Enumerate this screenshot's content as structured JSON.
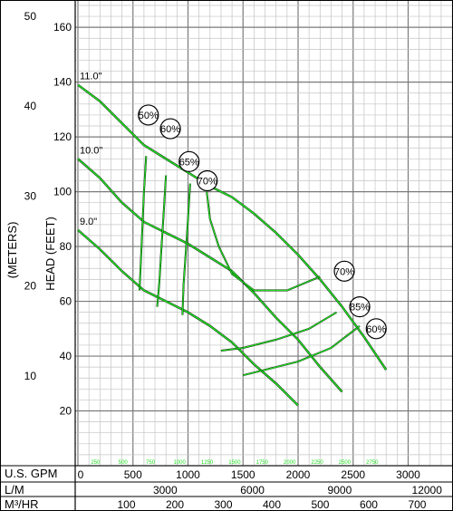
{
  "chart_data": {
    "type": "line",
    "title": "",
    "axes": {
      "head_feet": {
        "label": "HEAD (FEET)",
        "range": [
          0,
          170
        ],
        "ticks": [
          20,
          40,
          60,
          80,
          100,
          120,
          140,
          160
        ]
      },
      "head_meters": {
        "label": "(METERS)",
        "range": [
          0,
          51.8
        ],
        "ticks": [
          10,
          20,
          30,
          40,
          50
        ]
      },
      "flow_gpm": {
        "label": "U.S. GPM",
        "range": [
          0,
          3400
        ],
        "ticks": [
          0,
          500,
          1000,
          1500,
          2000,
          2500,
          3000
        ]
      },
      "flow_lpm": {
        "label": "L/M",
        "range": [
          0,
          12870
        ],
        "ticks": [
          3000,
          6000,
          9000,
          12000
        ]
      },
      "flow_m3hr": {
        "label": "M³/HR",
        "range": [
          0,
          772
        ],
        "ticks": [
          100,
          200,
          300,
          400,
          500,
          600,
          700
        ]
      }
    },
    "grid": true,
    "series": [
      {
        "name": "11.0\"",
        "color": "#22dd22",
        "x": [
          0,
          200,
          400,
          600,
          800,
          1000,
          1200,
          1400,
          1600,
          1800,
          2000,
          2200,
          2400,
          2600,
          2800
        ],
        "y": [
          139,
          133,
          125,
          117,
          112,
          107,
          102,
          98,
          92,
          85,
          77,
          68,
          58,
          47,
          35
        ]
      },
      {
        "name": "10.0\"",
        "color": "#22dd22",
        "x": [
          0,
          200,
          400,
          600,
          800,
          1000,
          1200,
          1400,
          1600,
          1800,
          2000,
          2200,
          2400
        ],
        "y": [
          112,
          105,
          96,
          89,
          85,
          81,
          76,
          71,
          63,
          54,
          46,
          36,
          27
        ]
      },
      {
        "name": "9.0\"",
        "color": "#22dd22",
        "x": [
          0,
          200,
          400,
          600,
          800,
          1000,
          1200,
          1400,
          1600,
          1800,
          2000
        ],
        "y": [
          86,
          79,
          71,
          64,
          60,
          56,
          51,
          45,
          37,
          30,
          22
        ]
      }
    ],
    "efficiency_curves": [
      {
        "label": "50%",
        "x": [
          620,
          600,
          580,
          560
        ],
        "y": [
          113,
          100,
          82,
          64
        ]
      },
      {
        "label": "60%",
        "x": [
          800,
          780,
          760,
          740,
          720
        ],
        "y": [
          106,
          93,
          80,
          67,
          58
        ]
      },
      {
        "label": "65%",
        "x": [
          1020,
          1000,
          980,
          960,
          950
        ],
        "y": [
          103,
          90,
          78,
          66,
          55
        ]
      },
      {
        "label": "70%",
        "x": [
          1170,
          1200,
          1280,
          1400,
          1600,
          1900,
          2200
        ],
        "y": [
          100,
          90,
          80,
          70,
          64,
          64,
          69
        ]
      },
      {
        "label": "85%",
        "x": [
          1300,
          1500,
          1800,
          2100,
          2350
        ],
        "y": [
          42,
          43,
          46,
          50,
          56
        ]
      },
      {
        "label": "60%",
        "x": [
          1500,
          1700,
          2000,
          2300,
          2560
        ],
        "y": [
          33,
          35,
          38,
          43,
          51
        ]
      }
    ],
    "efficiency_markers": [
      {
        "label": "50%",
        "x": 640,
        "y": 128
      },
      {
        "label": "60%",
        "x": 840,
        "y": 123
      },
      {
        "label": "65%",
        "x": 1010,
        "y": 111
      },
      {
        "label": "70%",
        "x": 1175,
        "y": 104
      },
      {
        "label": "70%",
        "x": 2420,
        "y": 71
      },
      {
        "label": "85%",
        "x": 2560,
        "y": 58
      },
      {
        "label": "60%",
        "x": 2710,
        "y": 50
      }
    ],
    "faint_axis_labels": [
      "250",
      "500",
      "750",
      "1000",
      "1250",
      "1500",
      "1750",
      "2000",
      "2250",
      "2500",
      "2750"
    ]
  }
}
